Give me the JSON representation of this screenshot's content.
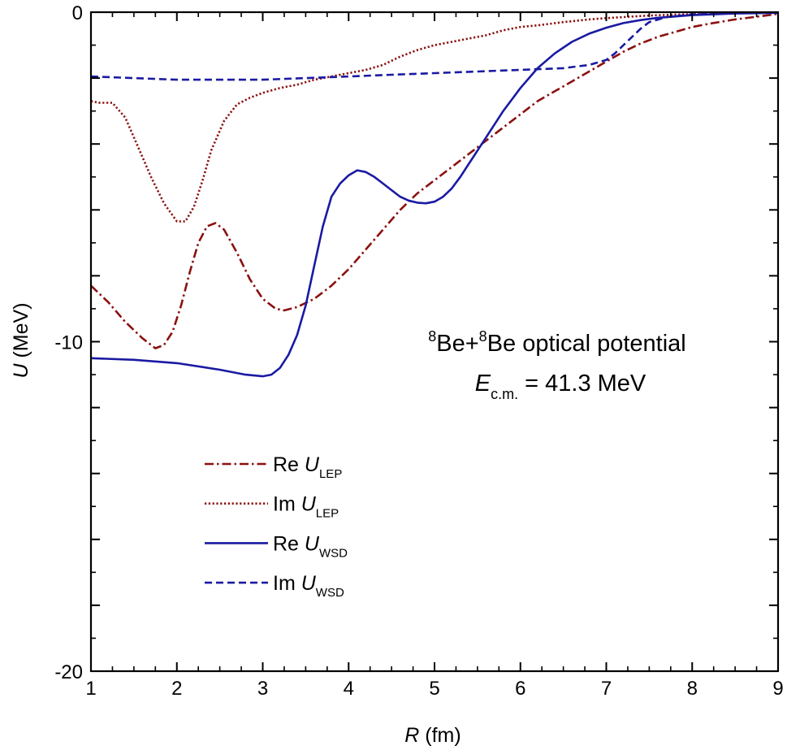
{
  "chart_data": {
    "type": "line",
    "annotation": {
      "line1": {
        "sup1": "8",
        "t1": "Be+",
        "sup2": "8",
        "t2": "Be optical potential"
      },
      "line2": {
        "sym": "E",
        "sub": "c.m.",
        "rest": " = 41.3 MeV"
      }
    },
    "xaxis": {
      "label_var": "R",
      "label_unit": " (fm)",
      "range": [
        1,
        9
      ],
      "major_ticks": [
        1,
        2,
        3,
        4,
        5,
        6,
        7,
        8,
        9
      ],
      "tick_labels": [
        "1",
        "2",
        "3",
        "4",
        "5",
        "6",
        "7",
        "8",
        "9"
      ],
      "minor_step": 0.25
    },
    "yaxis": {
      "label_var": "U",
      "label_unit": " (MeV)",
      "range": [
        -20,
        0
      ],
      "major_ticks": [
        -20,
        -18,
        -16,
        -14,
        -12,
        -10,
        -8,
        -6,
        -4,
        -2,
        0
      ],
      "labeled_ticks": [
        0,
        -10,
        -20
      ],
      "tick_labels": [
        "0",
        "-10",
        "-20"
      ],
      "minor_step": 1
    },
    "grid": false,
    "legend_position": "lower-left",
    "series": [
      {
        "key": "re_lep",
        "name_prefix": "Re ",
        "name_var": "U",
        "name_sub": "LEP",
        "color": "#8b1010",
        "dash": "dashdot",
        "x": [
          1.0,
          1.2,
          1.4,
          1.6,
          1.75,
          1.85,
          1.95,
          2.05,
          2.15,
          2.25,
          2.35,
          2.45,
          2.55,
          2.7,
          2.85,
          3.0,
          3.15,
          3.25,
          3.4,
          3.6,
          3.8,
          4.0,
          4.2,
          4.4,
          4.6,
          4.8,
          5.0,
          5.2,
          5.4,
          5.6,
          5.8,
          6.0,
          6.2,
          6.4,
          6.6,
          6.8,
          7.0,
          7.2,
          7.4,
          7.6,
          7.8,
          8.0,
          8.2,
          8.5,
          8.8,
          9.0
        ],
        "y": [
          -8.3,
          -8.8,
          -9.4,
          -9.9,
          -10.2,
          -10.1,
          -9.7,
          -8.9,
          -7.9,
          -7.0,
          -6.5,
          -6.4,
          -6.6,
          -7.3,
          -8.1,
          -8.7,
          -9.0,
          -9.05,
          -8.95,
          -8.7,
          -8.3,
          -7.8,
          -7.2,
          -6.6,
          -6.0,
          -5.5,
          -5.1,
          -4.7,
          -4.3,
          -3.9,
          -3.5,
          -3.1,
          -2.7,
          -2.4,
          -2.1,
          -1.8,
          -1.5,
          -1.2,
          -0.95,
          -0.75,
          -0.6,
          -0.45,
          -0.35,
          -0.22,
          -0.12,
          -0.05
        ]
      },
      {
        "key": "im_lep",
        "name_prefix": "Im ",
        "name_var": "U",
        "name_sub": "LEP",
        "color": "#8b1010",
        "dash": "dotted",
        "x": [
          1.0,
          1.1,
          1.25,
          1.4,
          1.55,
          1.7,
          1.85,
          2.0,
          2.1,
          2.2,
          2.3,
          2.4,
          2.55,
          2.7,
          2.85,
          3.0,
          3.2,
          3.4,
          3.6,
          3.8,
          4.0,
          4.2,
          4.4,
          4.6,
          4.8,
          5.0,
          5.2,
          5.4,
          5.6,
          5.8,
          6.0,
          6.2,
          6.5,
          6.8,
          7.0,
          7.5,
          8.0,
          8.5,
          9.0
        ],
        "y": [
          -2.7,
          -2.75,
          -2.75,
          -3.2,
          -4.1,
          -5.0,
          -5.8,
          -6.35,
          -6.35,
          -5.9,
          -5.1,
          -4.2,
          -3.3,
          -2.8,
          -2.6,
          -2.45,
          -2.3,
          -2.2,
          -2.05,
          -1.95,
          -1.85,
          -1.75,
          -1.6,
          -1.35,
          -1.15,
          -1.0,
          -0.9,
          -0.8,
          -0.7,
          -0.55,
          -0.45,
          -0.4,
          -0.3,
          -0.22,
          -0.18,
          -0.1,
          -0.06,
          -0.03,
          -0.01
        ]
      },
      {
        "key": "re_wsd",
        "name_prefix": "Re ",
        "name_var": "U",
        "name_sub": "WSD",
        "color": "#1a1aa3",
        "dash": "solid",
        "x": [
          1.0,
          1.5,
          2.0,
          2.5,
          2.8,
          3.0,
          3.1,
          3.2,
          3.3,
          3.4,
          3.5,
          3.6,
          3.7,
          3.8,
          3.9,
          4.0,
          4.1,
          4.2,
          4.3,
          4.4,
          4.5,
          4.6,
          4.7,
          4.8,
          4.9,
          5.0,
          5.1,
          5.2,
          5.3,
          5.4,
          5.5,
          5.6,
          5.7,
          5.8,
          5.9,
          6.0,
          6.2,
          6.4,
          6.6,
          6.8,
          7.0,
          7.2,
          7.4,
          7.6,
          8.0,
          8.5,
          9.0
        ],
        "y": [
          -10.5,
          -10.55,
          -10.65,
          -10.85,
          -11.0,
          -11.05,
          -11.0,
          -10.8,
          -10.4,
          -9.8,
          -8.9,
          -7.7,
          -6.5,
          -5.6,
          -5.2,
          -4.95,
          -4.8,
          -4.85,
          -5.0,
          -5.2,
          -5.4,
          -5.6,
          -5.72,
          -5.78,
          -5.8,
          -5.75,
          -5.6,
          -5.35,
          -5.0,
          -4.6,
          -4.2,
          -3.8,
          -3.4,
          -3.0,
          -2.65,
          -2.3,
          -1.7,
          -1.25,
          -0.9,
          -0.65,
          -0.47,
          -0.33,
          -0.24,
          -0.17,
          -0.09,
          -0.04,
          -0.02
        ]
      },
      {
        "key": "im_wsd",
        "name_prefix": "Im ",
        "name_var": "U",
        "name_sub": "WSD",
        "color": "#1a1aa3",
        "dash": "dashed",
        "x": [
          1.0,
          1.5,
          2.0,
          2.5,
          3.0,
          3.5,
          4.0,
          4.5,
          5.0,
          5.5,
          6.0,
          6.5,
          6.8,
          7.0,
          7.1,
          7.2,
          7.3,
          7.4,
          7.5,
          7.7,
          8.0,
          8.5,
          9.0
        ],
        "y": [
          -1.95,
          -2.0,
          -2.05,
          -2.05,
          -2.05,
          -2.0,
          -1.95,
          -1.9,
          -1.85,
          -1.8,
          -1.75,
          -1.7,
          -1.6,
          -1.45,
          -1.25,
          -1.0,
          -0.75,
          -0.5,
          -0.3,
          -0.15,
          -0.07,
          -0.03,
          -0.01
        ]
      }
    ]
  }
}
